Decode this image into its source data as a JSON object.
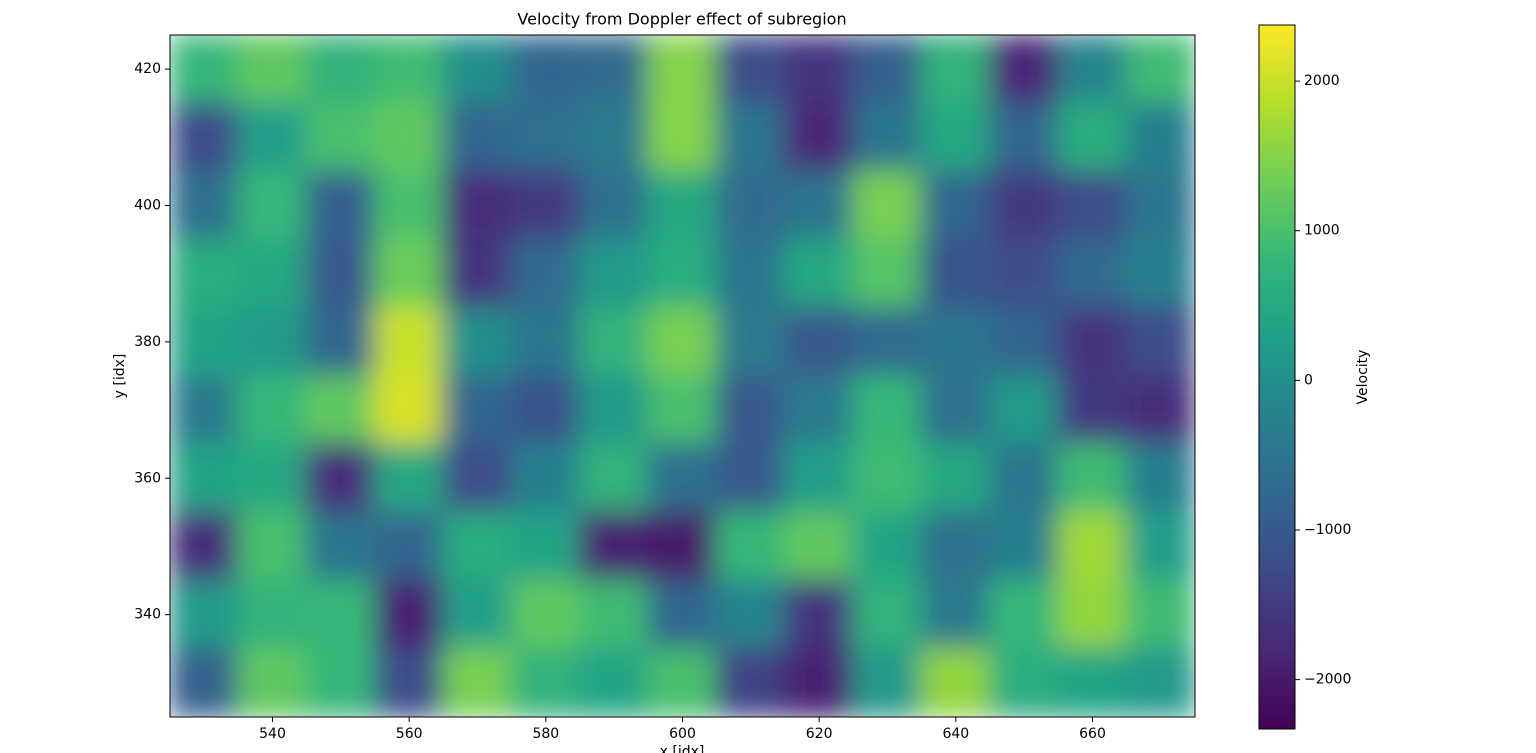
{
  "chart_data": {
    "type": "heatmap",
    "title": "Velocity from Doppler effect of subregion",
    "x_label": "x [idx]",
    "y_label": "y [idx]",
    "colorbar_label": "Velocity",
    "colormap": "viridis",
    "x": [
      530,
      540,
      550,
      560,
      570,
      580,
      590,
      600,
      610,
      620,
      630,
      640,
      650,
      660,
      670
    ],
    "y": [
      420,
      410,
      400,
      390,
      380,
      370,
      360,
      350,
      340,
      330
    ],
    "z": [
      [
        800,
        1200,
        700,
        900,
        0,
        -800,
        -700,
        1500,
        -1200,
        -1600,
        -900,
        700,
        -1800,
        -200,
        900
      ],
      [
        -1200,
        300,
        1000,
        1200,
        -800,
        -600,
        -400,
        1500,
        -500,
        -1800,
        -500,
        500,
        -800,
        600,
        -300
      ],
      [
        -600,
        800,
        -900,
        1000,
        -1700,
        -1500,
        -600,
        500,
        -700,
        -500,
        1400,
        -800,
        -1500,
        -1200,
        -500
      ],
      [
        600,
        500,
        -1000,
        1300,
        -1600,
        -700,
        200,
        600,
        -500,
        500,
        1100,
        -1100,
        -1200,
        -700,
        -300
      ],
      [
        400,
        200,
        -800,
        2000,
        0,
        -500,
        700,
        1400,
        -400,
        -1000,
        -700,
        -500,
        -800,
        -1600,
        -1200
      ],
      [
        -400,
        800,
        1200,
        2100,
        -800,
        -1100,
        200,
        1000,
        -1000,
        -400,
        800,
        -600,
        200,
        -1500,
        -1700
      ],
      [
        400,
        500,
        -1700,
        500,
        -1200,
        -300,
        700,
        -600,
        -1000,
        300,
        900,
        500,
        -500,
        900,
        -300
      ],
      [
        -1700,
        1000,
        -500,
        -800,
        600,
        400,
        -1900,
        -2000,
        800,
        1200,
        400,
        -600,
        -300,
        1700,
        300
      ],
      [
        200,
        700,
        800,
        -1900,
        300,
        1200,
        900,
        -800,
        -200,
        -1600,
        700,
        -400,
        800,
        1600,
        900
      ],
      [
        -900,
        1200,
        800,
        -1200,
        1400,
        700,
        400,
        1000,
        -1400,
        -1900,
        200,
        1600,
        600,
        400,
        200
      ]
    ],
    "xlim": [
      525,
      675
    ],
    "ylim": [
      325,
      425
    ],
    "xticks": [
      540,
      560,
      580,
      600,
      620,
      640,
      660
    ],
    "yticks": [
      340,
      360,
      380,
      400,
      420
    ],
    "clim": [
      -2330,
      2375
    ],
    "cticks": [
      {
        "value": -2000,
        "label": "−2000"
      },
      {
        "value": -1000,
        "label": "−1000"
      },
      0,
      1000,
      2000
    ]
  }
}
